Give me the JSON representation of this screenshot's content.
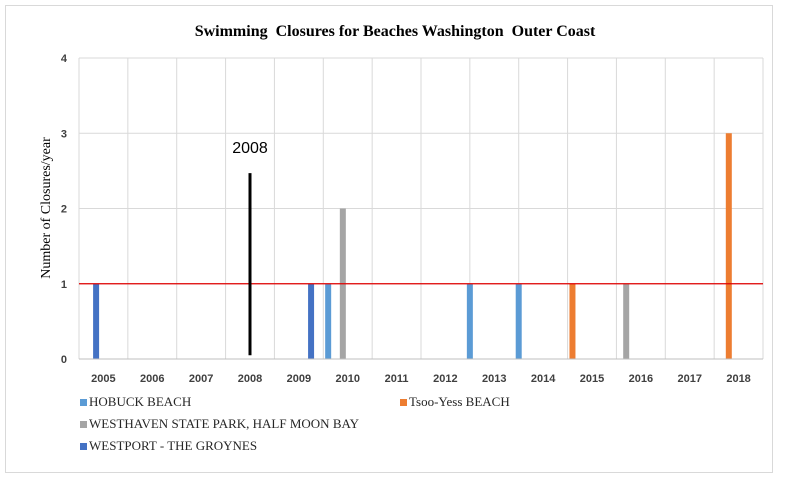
{
  "chart_data": {
    "type": "bar",
    "title": "Swimming  Closures for Beaches Washington  Outer Coast",
    "ylabel": "Number of Closures/year",
    "xlabel": "",
    "categories": [
      "2005",
      "2006",
      "2007",
      "2008",
      "2009",
      "2010",
      "2011",
      "2012",
      "2013",
      "2014",
      "2015",
      "2016",
      "2017",
      "2018"
    ],
    "ylim": [
      0,
      4
    ],
    "yticks": [
      "0",
      "1",
      "2",
      "3",
      "4"
    ],
    "grid": true,
    "legend_position": "bottom",
    "reference_line": {
      "y": 1,
      "color": "#e00000"
    },
    "annotation": {
      "text": "2008",
      "x": "2008",
      "y_from": 0.05,
      "y_to": 2.47,
      "color": "#000000"
    },
    "series": [
      {
        "name": "HOBUCK BEACH",
        "color": "#5b9bd5",
        "points": [
          {
            "x": 2009.6,
            "y": 1
          },
          {
            "x": 2012.5,
            "y": 1
          },
          {
            "x": 2013.5,
            "y": 1
          }
        ]
      },
      {
        "name": "Tsoo-Yess BEACH",
        "color": "#ed7d31",
        "points": [
          {
            "x": 2014.6,
            "y": 1
          },
          {
            "x": 2017.8,
            "y": 3
          }
        ]
      },
      {
        "name": "WESTHAVEN STATE PARK, HALF MOON BAY",
        "color": "#a5a5a5",
        "points": [
          {
            "x": 2009.9,
            "y": 2
          },
          {
            "x": 2015.7,
            "y": 1
          }
        ]
      },
      {
        "name": "WESTPORT - THE GROYNES",
        "color": "#4472c4",
        "points": [
          {
            "x": 2004.85,
            "y": 1
          },
          {
            "x": 2009.25,
            "y": 1
          }
        ]
      }
    ]
  }
}
